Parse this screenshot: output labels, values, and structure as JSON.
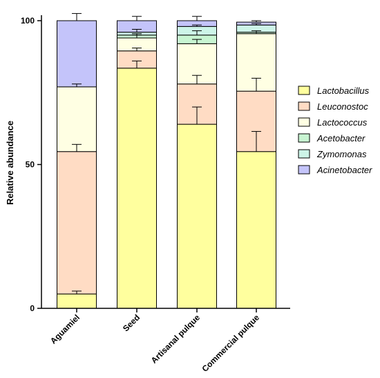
{
  "chart_data": {
    "type": "bar",
    "stacked": true,
    "categories": [
      "Aguamiel",
      "Seed",
      "Artisanal pulque",
      "Commercial pulque"
    ],
    "ylabel": "Relative abundance",
    "xlabel": "",
    "ylim": [
      0,
      100
    ],
    "yticks": [
      0,
      50,
      100
    ],
    "legend_position": "right",
    "series": [
      {
        "name": "Lactobacillus",
        "color": "#ffff9e",
        "values": [
          5,
          83.5,
          64,
          54.5
        ],
        "errors": [
          1,
          2.5,
          6,
          7
        ]
      },
      {
        "name": "Leuconostoc",
        "color": "#ffdcc4",
        "values": [
          49.5,
          6,
          14,
          21
        ],
        "errors": [
          2.5,
          1,
          3,
          4.5
        ]
      },
      {
        "name": "Lactococcus",
        "color": "#ffffe3",
        "values": [
          22.5,
          4.5,
          14,
          20
        ],
        "errors": [
          1,
          1,
          1.5,
          1
        ]
      },
      {
        "name": "Acetobacter",
        "color": "#c8f5d2",
        "values": [
          0,
          1,
          3,
          0.5
        ],
        "errors": [
          0,
          0.5,
          1.5,
          0
        ]
      },
      {
        "name": "Zymomonas",
        "color": "#cdf5e8",
        "values": [
          0,
          1,
          3,
          2.5
        ],
        "errors": [
          0,
          1,
          0.5,
          0.5
        ]
      },
      {
        "name": "Acinetobacter",
        "color": "#c4c4fa",
        "values": [
          23,
          4,
          2,
          1
        ],
        "errors": [
          2.5,
          1.5,
          1.5,
          0.5
        ]
      }
    ]
  }
}
